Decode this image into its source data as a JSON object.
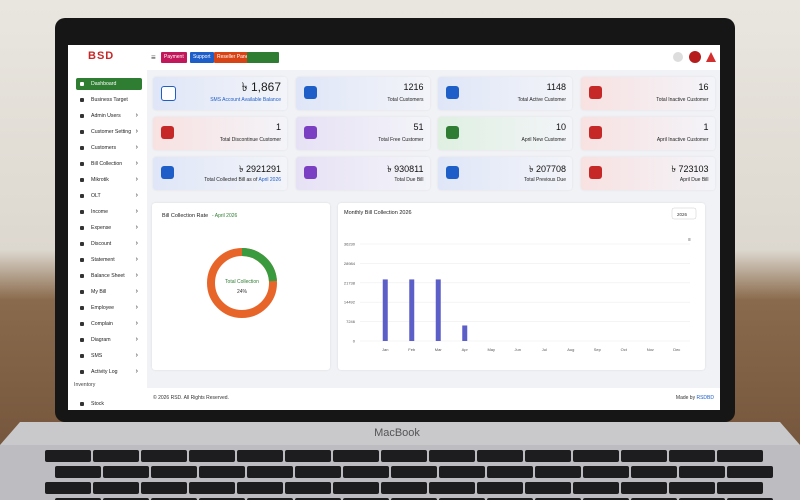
{
  "header": {
    "logo": "BSD",
    "buttons": [
      "Payment",
      "Support",
      "Reseller Panel"
    ]
  },
  "sidebar": {
    "items": [
      "Dashboard",
      "Business Target",
      "Admin Users",
      "Customer Setting",
      "Customers",
      "Bill Collection",
      "Mikrotik",
      "OLT",
      "Income",
      "Expense",
      "Discount",
      "Statement",
      "Balance Sheet",
      "My Bill",
      "Employee",
      "Complain",
      "Diagram",
      "SMS",
      "Activity Log"
    ],
    "section": "Inventory",
    "section_items": [
      "Stock"
    ]
  },
  "cards": [
    {
      "value": "৳ 1,867",
      "label": "SMS Account Available Balance"
    },
    {
      "value": "1216",
      "label": "Total Customers"
    },
    {
      "value": "1148",
      "label": "Total Active Customer"
    },
    {
      "value": "16",
      "label": "Total Inactive Customer"
    },
    {
      "value": "1",
      "label": "Total Discontinue Customer"
    },
    {
      "value": "51",
      "label": "Total Free Customer"
    },
    {
      "value": "10",
      "label": "April New Customer"
    },
    {
      "value": "1",
      "label": "April Inactive Customer"
    },
    {
      "value": "৳ 2921291",
      "label": "Total Collected Bill as of",
      "highlight": "April 2026"
    },
    {
      "value": "৳ 930811",
      "label": "Total Due Bill"
    },
    {
      "value": "৳ 207708",
      "label": "Total Previous Due"
    },
    {
      "value": "৳ 723103",
      "label": "April Due Bill"
    }
  ],
  "chart_data": [
    {
      "type": "donut",
      "title": "Bill Collection Rate",
      "subtitle": "- April 2026",
      "center_label": "Total Collection",
      "values": [
        24
      ],
      "value_labels": [
        "24%"
      ],
      "color": "#3a9a3e",
      "rest_color": "#e8652a"
    },
    {
      "type": "bar",
      "title": "Monthly Bill Collection 2026",
      "year_select": "2026",
      "categories": [
        "Jan",
        "Feb",
        "Mar",
        "Apr",
        "May",
        "Jun",
        "Jul",
        "Aug",
        "Sep",
        "Oct",
        "Nov",
        "Dec"
      ],
      "values": [
        23000,
        23000,
        23000,
        5800,
        0,
        0,
        0,
        0,
        0,
        0,
        0,
        0
      ],
      "color": "#5b5fc7",
      "ylim": [
        0,
        36230
      ],
      "yticks": [
        0,
        7246,
        14492,
        21738,
        28984,
        36230
      ],
      "grid": true
    }
  ],
  "footer": {
    "copyright": "© 2026 RSD. All Rights Reserved.",
    "made_by": "Made by",
    "brand": "RSDBD"
  },
  "laptop": {
    "label": "MacBook"
  }
}
